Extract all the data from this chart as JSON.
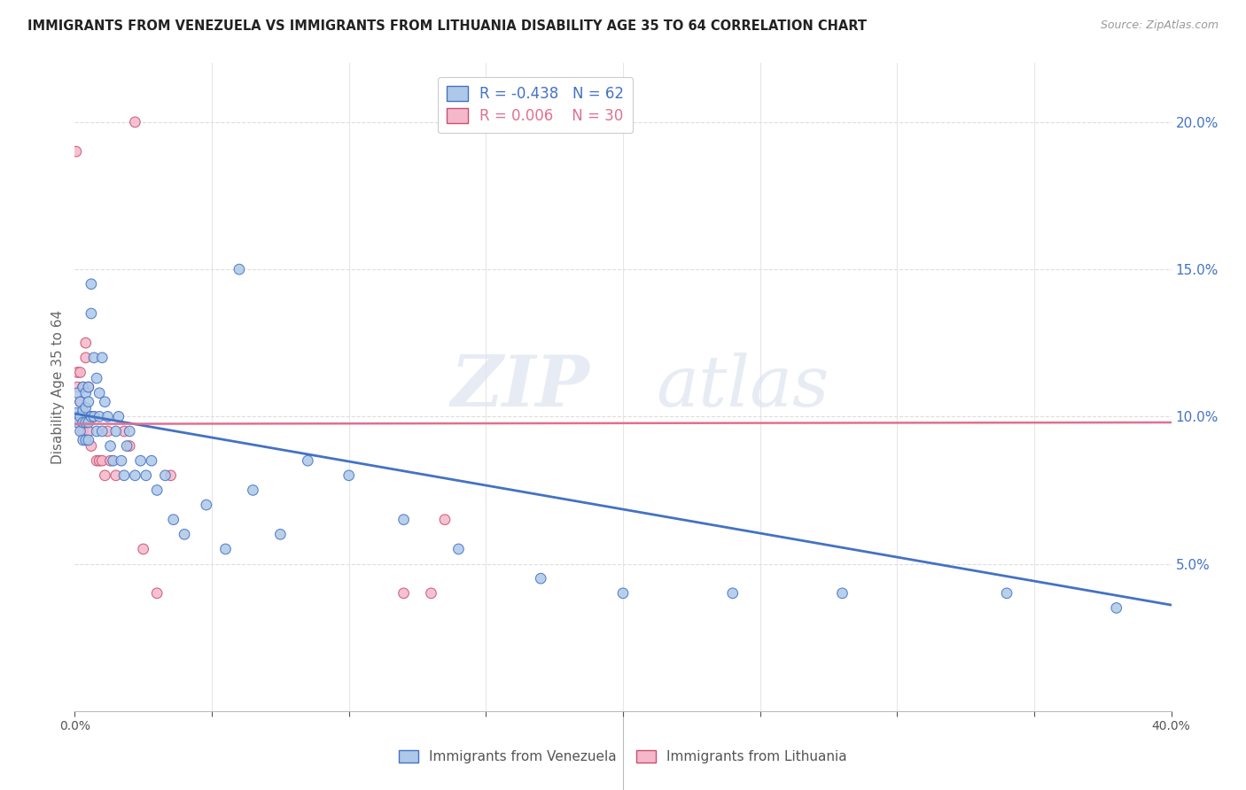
{
  "title": "IMMIGRANTS FROM VENEZUELA VS IMMIGRANTS FROM LITHUANIA DISABILITY AGE 35 TO 64 CORRELATION CHART",
  "source": "Source: ZipAtlas.com",
  "ylabel": "Disability Age 35 to 64",
  "legend_label1": "Immigrants from Venezuela",
  "legend_label2": "Immigrants from Lithuania",
  "R1": -0.438,
  "N1": 62,
  "R2": 0.006,
  "N2": 30,
  "color1": "#adc8e8",
  "color2": "#f5b8ca",
  "line_color1": "#4472c4",
  "line_color2": "#e07090",
  "line_color2_border": "#c85070",
  "xlim": [
    0.0,
    0.4
  ],
  "ylim": [
    0.0,
    0.22
  ],
  "xticks": [
    0.0,
    0.05,
    0.1,
    0.15,
    0.2,
    0.25,
    0.3,
    0.35,
    0.4
  ],
  "yticks_right": [
    0.05,
    0.1,
    0.15,
    0.2
  ],
  "venezuela_x": [
    0.0005,
    0.001,
    0.001,
    0.002,
    0.002,
    0.002,
    0.003,
    0.003,
    0.003,
    0.003,
    0.004,
    0.004,
    0.004,
    0.004,
    0.005,
    0.005,
    0.005,
    0.005,
    0.006,
    0.006,
    0.006,
    0.007,
    0.007,
    0.008,
    0.008,
    0.009,
    0.009,
    0.01,
    0.01,
    0.011,
    0.012,
    0.013,
    0.014,
    0.015,
    0.016,
    0.017,
    0.018,
    0.019,
    0.02,
    0.022,
    0.024,
    0.026,
    0.028,
    0.03,
    0.033,
    0.036,
    0.04,
    0.048,
    0.055,
    0.06,
    0.065,
    0.075,
    0.085,
    0.1,
    0.12,
    0.14,
    0.17,
    0.2,
    0.24,
    0.28,
    0.34,
    0.38
  ],
  "venezuela_y": [
    0.1,
    0.108,
    0.098,
    0.105,
    0.1,
    0.095,
    0.11,
    0.102,
    0.098,
    0.092,
    0.108,
    0.103,
    0.098,
    0.092,
    0.11,
    0.105,
    0.098,
    0.092,
    0.135,
    0.145,
    0.1,
    0.12,
    0.1,
    0.113,
    0.095,
    0.108,
    0.1,
    0.12,
    0.095,
    0.105,
    0.1,
    0.09,
    0.085,
    0.095,
    0.1,
    0.085,
    0.08,
    0.09,
    0.095,
    0.08,
    0.085,
    0.08,
    0.085,
    0.075,
    0.08,
    0.065,
    0.06,
    0.07,
    0.055,
    0.15,
    0.075,
    0.06,
    0.085,
    0.08,
    0.065,
    0.055,
    0.045,
    0.04,
    0.04,
    0.04,
    0.04,
    0.035
  ],
  "venezuela_size": [
    200,
    70,
    70,
    70,
    70,
    70,
    70,
    70,
    70,
    70,
    70,
    70,
    70,
    70,
    70,
    70,
    70,
    70,
    70,
    70,
    70,
    70,
    70,
    70,
    70,
    70,
    70,
    70,
    70,
    70,
    70,
    70,
    70,
    70,
    70,
    70,
    70,
    70,
    70,
    70,
    70,
    70,
    70,
    70,
    70,
    70,
    70,
    70,
    70,
    70,
    70,
    70,
    70,
    70,
    70,
    70,
    70,
    70,
    70,
    70,
    70,
    70
  ],
  "lithuania_x": [
    0.0005,
    0.001,
    0.001,
    0.002,
    0.002,
    0.003,
    0.003,
    0.004,
    0.004,
    0.005,
    0.005,
    0.006,
    0.006,
    0.007,
    0.008,
    0.009,
    0.01,
    0.011,
    0.012,
    0.013,
    0.015,
    0.018,
    0.02,
    0.022,
    0.025,
    0.03,
    0.035,
    0.12,
    0.13,
    0.135
  ],
  "lithuania_y": [
    0.19,
    0.115,
    0.11,
    0.115,
    0.105,
    0.11,
    0.095,
    0.125,
    0.12,
    0.11,
    0.095,
    0.1,
    0.09,
    0.1,
    0.085,
    0.085,
    0.085,
    0.08,
    0.095,
    0.085,
    0.08,
    0.095,
    0.09,
    0.2,
    0.055,
    0.04,
    0.08,
    0.04,
    0.04,
    0.065
  ],
  "lithuania_size": [
    70,
    70,
    70,
    70,
    70,
    70,
    70,
    70,
    70,
    70,
    70,
    70,
    70,
    70,
    70,
    70,
    70,
    70,
    70,
    70,
    70,
    70,
    70,
    70,
    70,
    70,
    70,
    70,
    70,
    70
  ],
  "watermark_zip": "ZIP",
  "watermark_atlas": "atlas",
  "background_color": "#ffffff",
  "grid_color": "#dddddd",
  "trend_line_x_start": 0.0,
  "trend_line_x_end": 0.4,
  "ven_trend_y_start": 0.101,
  "ven_trend_y_end": 0.036,
  "lit_trend_y_start": 0.0975,
  "lit_trend_y_end": 0.098
}
